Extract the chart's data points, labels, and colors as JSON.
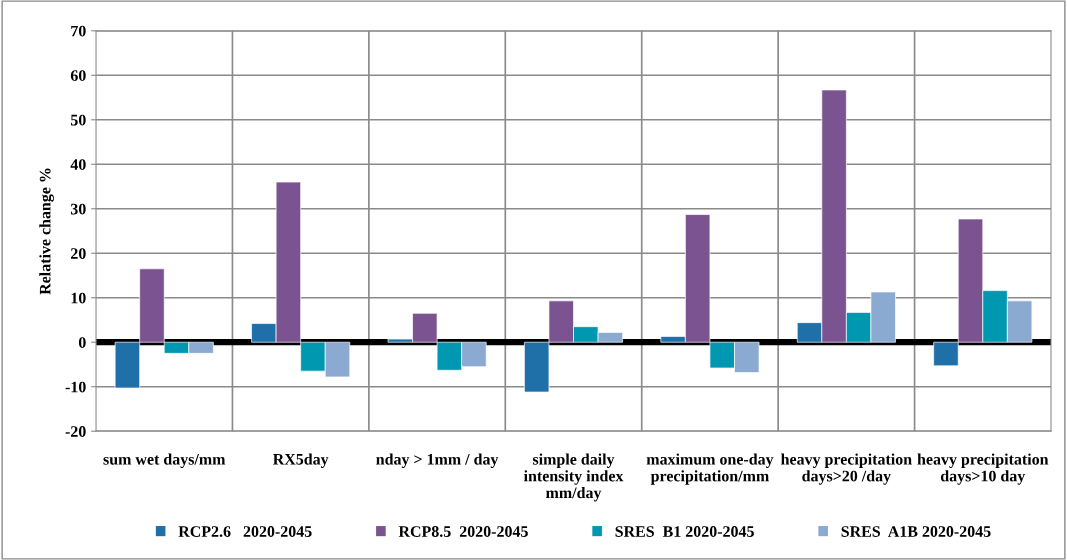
{
  "chart_data": {
    "type": "bar",
    "ylabel": "Relative change %",
    "categories": [
      "sum wet days/mm",
      "RX5day",
      "nday > 1mm / day",
      "simple daily\nintensity index\nmm/day",
      "maximum one-day\nprecipitation/mm",
      "heavy precipitation\ndays>20 /day",
      "heavy precipitation\ndays>10 day"
    ],
    "series": [
      {
        "name": "RCP2.6   2020-2045",
        "color": "#1f6fa8",
        "values": [
          -10.3,
          4.2,
          0.7,
          -11.2,
          1.3,
          4.4,
          -5.3
        ]
      },
      {
        "name": "RCP8.5  2020-2045",
        "color": "#7a5390",
        "values": [
          16.5,
          36,
          6.5,
          9.3,
          28.7,
          56.7,
          27.7
        ]
      },
      {
        "name": "SRES  B1 2020-2045",
        "color": "#0098b1",
        "values": [
          -2.5,
          -6.5,
          -6.3,
          3.5,
          -5.8,
          6.7,
          11.6
        ]
      },
      {
        "name": "SRES  A1B 2020-2045",
        "color": "#8aaad1",
        "values": [
          -2.5,
          -7.8,
          -5.5,
          2.2,
          -6.8,
          11.3,
          9.3
        ]
      }
    ],
    "ylim": [
      -20,
      70
    ],
    "yticks": [
      -20,
      -10,
      0,
      10,
      20,
      30,
      40,
      50,
      60,
      70
    ],
    "ref_lines": [
      {
        "axis": "y",
        "value": 0,
        "color": "#000000"
      }
    ],
    "grid": true,
    "legend": "bottom"
  }
}
